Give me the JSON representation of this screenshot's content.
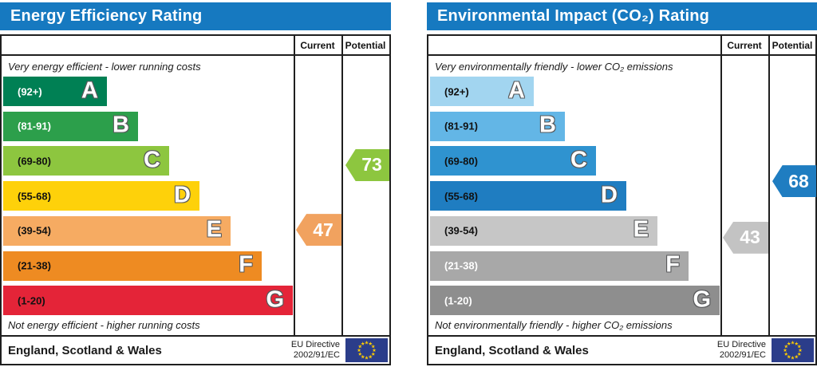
{
  "colors": {
    "header_bg": "#1679c0",
    "table_border": "#1f1f1f",
    "flag_bg": "#2b3d8a",
    "flag_stars": "#ffcc00"
  },
  "charts": [
    {
      "title": "Energy Efficiency Rating",
      "columns": {
        "current": "Current",
        "potential": "Potential"
      },
      "caption_top": "Very energy efficient - lower running costs",
      "caption_bottom": "Not energy efficient - higher running costs",
      "bands": [
        {
          "letter": "A",
          "range_label": "(92+)",
          "score_lo": 92,
          "score_hi": 100,
          "color": "#008054",
          "text_color": "#ffffff"
        },
        {
          "letter": "B",
          "range_label": "(81-91)",
          "score_lo": 81,
          "score_hi": 91,
          "color": "#2c9f4b",
          "text_color": "#ffffff"
        },
        {
          "letter": "C",
          "range_label": "(69-80)",
          "score_lo": 69,
          "score_hi": 80,
          "color": "#8dc63f",
          "text_color": "#111111"
        },
        {
          "letter": "D",
          "range_label": "(55-68)",
          "score_lo": 55,
          "score_hi": 68,
          "color": "#fed10a",
          "text_color": "#111111"
        },
        {
          "letter": "E",
          "range_label": "(39-54)",
          "score_lo": 39,
          "score_hi": 54,
          "color": "#f6ab62",
          "text_color": "#111111"
        },
        {
          "letter": "F",
          "range_label": "(21-38)",
          "score_lo": 21,
          "score_hi": 38,
          "color": "#ee8b22",
          "text_color": "#111111"
        },
        {
          "letter": "G",
          "range_label": "(1-20)",
          "score_lo": 1,
          "score_hi": 20,
          "color": "#e42438",
          "text_color": "#111111"
        }
      ],
      "current": {
        "value": 47,
        "band": "E",
        "color": "#f1a25f"
      },
      "potential": {
        "value": 73,
        "band": "C",
        "color": "#8dc63f"
      },
      "footer": {
        "region": "England, Scotland & Wales",
        "directive_line1": "EU Directive",
        "directive_line2": "2002/91/EC"
      }
    },
    {
      "title": "Environmental Impact (CO₂) Rating",
      "columns": {
        "current": "Current",
        "potential": "Potential"
      },
      "caption_top": "Very environmentally friendly - lower CO₂ emissions",
      "caption_bottom": "Not environmentally friendly - higher CO₂ emissions",
      "bands": [
        {
          "letter": "A",
          "range_label": "(92+)",
          "score_lo": 92,
          "score_hi": 100,
          "color": "#a2d5f0",
          "text_color": "#111111"
        },
        {
          "letter": "B",
          "range_label": "(81-91)",
          "score_lo": 81,
          "score_hi": 91,
          "color": "#63b6e6",
          "text_color": "#111111"
        },
        {
          "letter": "C",
          "range_label": "(69-80)",
          "score_lo": 69,
          "score_hi": 80,
          "color": "#2f93d0",
          "text_color": "#111111"
        },
        {
          "letter": "D",
          "range_label": "(55-68)",
          "score_lo": 55,
          "score_hi": 68,
          "color": "#1f7dc1",
          "text_color": "#111111"
        },
        {
          "letter": "E",
          "range_label": "(39-54)",
          "score_lo": 39,
          "score_hi": 54,
          "color": "#c6c6c6",
          "text_color": "#111111"
        },
        {
          "letter": "F",
          "range_label": "(21-38)",
          "score_lo": 21,
          "score_hi": 38,
          "color": "#a8a8a8",
          "text_color": "#ffffff"
        },
        {
          "letter": "G",
          "range_label": "(1-20)",
          "score_lo": 1,
          "score_hi": 20,
          "color": "#8e8e8e",
          "text_color": "#ffffff"
        }
      ],
      "current": {
        "value": 43,
        "band": "E",
        "color": "#c3c3c3"
      },
      "potential": {
        "value": 68,
        "band": "D",
        "color": "#1f7dc1"
      },
      "footer": {
        "region": "England, Scotland & Wales",
        "directive_line1": "EU Directive",
        "directive_line2": "2002/91/EC"
      }
    }
  ],
  "chart_data": [
    {
      "type": "bar",
      "title": "Energy Efficiency Rating",
      "categories": [
        "A (92+)",
        "B (81-91)",
        "C (69-80)",
        "D (55-68)",
        "E (39-54)",
        "F (21-38)",
        "G (1-20)"
      ],
      "series": [
        {
          "name": "Current",
          "value": 47,
          "band": "E"
        },
        {
          "name": "Potential",
          "value": 73,
          "band": "C"
        }
      ],
      "annotations": [
        "Very energy efficient - lower running costs",
        "Not energy efficient - higher running costs"
      ],
      "footer": "England, Scotland & Wales — EU Directive 2002/91/EC"
    },
    {
      "type": "bar",
      "title": "Environmental Impact (CO₂) Rating",
      "categories": [
        "A (92+)",
        "B (81-91)",
        "C (69-80)",
        "D (55-68)",
        "E (39-54)",
        "F (21-38)",
        "G (1-20)"
      ],
      "series": [
        {
          "name": "Current",
          "value": 43,
          "band": "E"
        },
        {
          "name": "Potential",
          "value": 68,
          "band": "D"
        }
      ],
      "annotations": [
        "Very environmentally friendly - lower CO₂ emissions",
        "Not environmentally friendly - higher CO₂ emissions"
      ],
      "footer": "England, Scotland & Wales — EU Directive 2002/91/EC"
    }
  ]
}
